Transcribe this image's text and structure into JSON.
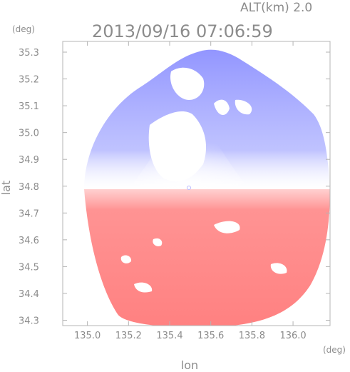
{
  "chart_data": {
    "type": "heatmap",
    "title": "2013/09/16 07:06:59",
    "subtitle": "ALT(km) 2.0",
    "xlabel": "lon",
    "ylabel": "lat",
    "x_unit": "(deg)",
    "y_unit": "(deg)",
    "xlim": [
      134.88,
      136.18
    ],
    "ylim": [
      34.28,
      35.34
    ],
    "x_ticks": [
      "135.0",
      "135.2",
      "135.4",
      "135.6",
      "135.8",
      "136.0"
    ],
    "y_ticks": [
      "34.3",
      "34.4",
      "34.5",
      "34.6",
      "34.7",
      "34.8",
      "34.9",
      "35.0",
      "35.1",
      "35.2",
      "35.3"
    ],
    "radar_center": {
      "lon": 135.52,
      "lat": 34.82
    },
    "colors": {
      "approaching": "#6f73f2",
      "receding": "#ff7f7f",
      "frame": "#b4b4b4",
      "text": "#8c8c8c"
    }
  }
}
